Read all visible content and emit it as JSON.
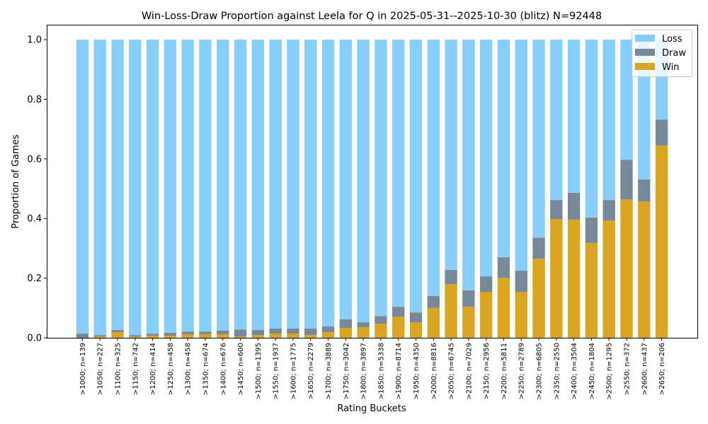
{
  "chart_data": {
    "type": "bar",
    "stacked": true,
    "title": "Win-Loss-Draw Proportion against Leela for Q in 2025-05-31--2025-10-30 (blitz) N=92448",
    "xlabel": "Rating Buckets",
    "ylabel": "Proportion of Games",
    "ylim": [
      0,
      1.05
    ],
    "yticks": [
      "0.0",
      "0.2",
      "0.4",
      "0.6",
      "0.8",
      "1.0"
    ],
    "legend_position": "top-right",
    "categories": [
      ">1000; n=139",
      ">1050; n=227",
      ">1100; n=325",
      ">1150; n=742",
      ">1200; n=414",
      ">1250; n=458",
      ">1300; n=458",
      ">1350; n=674",
      ">1400; n=676",
      ">1450; n=600",
      ">1500; n=1395",
      ">1550; n=1937",
      ">1600; n=1775",
      ">1650; n=2279",
      ">1700; n=3889",
      ">1750; n=3042",
      ">1800; n=3897",
      ">1850; n=5338",
      ">1900; n=8714",
      ">1950; n=4350",
      ">2000; n=8816",
      ">2050; n=6745",
      ">2100; n=7029",
      ">2150; n=2956",
      ">2200; n=5811",
      ">2250; n=2789",
      ">2300; n=6805",
      ">2350; n=2550",
      ">2400; n=3504",
      ">2450; n=1804",
      ">2500; n=1295",
      ">2550; n=372",
      ">2600; n=437",
      ">2650; n=206"
    ],
    "series": [
      {
        "name": "Win",
        "color": "#DAA520",
        "values": [
          0.0,
          0.004,
          0.019,
          0.004,
          0.007,
          0.007,
          0.012,
          0.012,
          0.012,
          0.004,
          0.009,
          0.014,
          0.014,
          0.009,
          0.019,
          0.033,
          0.035,
          0.047,
          0.071,
          0.052,
          0.1,
          0.18,
          0.104,
          0.154,
          0.201,
          0.154,
          0.265,
          0.398,
          0.396,
          0.318,
          0.393,
          0.464,
          0.457,
          0.645
        ]
      },
      {
        "name": "Draw",
        "color": "#778899",
        "values": [
          0.014,
          0.005,
          0.007,
          0.005,
          0.007,
          0.01,
          0.009,
          0.009,
          0.012,
          0.024,
          0.017,
          0.017,
          0.017,
          0.022,
          0.019,
          0.029,
          0.017,
          0.026,
          0.033,
          0.033,
          0.04,
          0.048,
          0.055,
          0.052,
          0.069,
          0.071,
          0.071,
          0.064,
          0.09,
          0.085,
          0.069,
          0.133,
          0.074,
          0.087
        ]
      },
      {
        "name": "Loss",
        "color": "#87CEFA",
        "values": [
          0.986,
          0.991,
          0.974,
          0.991,
          0.986,
          0.983,
          0.979,
          0.979,
          0.976,
          0.972,
          0.974,
          0.969,
          0.969,
          0.969,
          0.962,
          0.938,
          0.948,
          0.927,
          0.896,
          0.915,
          0.86,
          0.772,
          0.841,
          0.794,
          0.73,
          0.775,
          0.664,
          0.538,
          0.514,
          0.597,
          0.538,
          0.403,
          0.469,
          0.268
        ]
      }
    ],
    "legend_order": [
      "Loss",
      "Draw",
      "Win"
    ]
  }
}
